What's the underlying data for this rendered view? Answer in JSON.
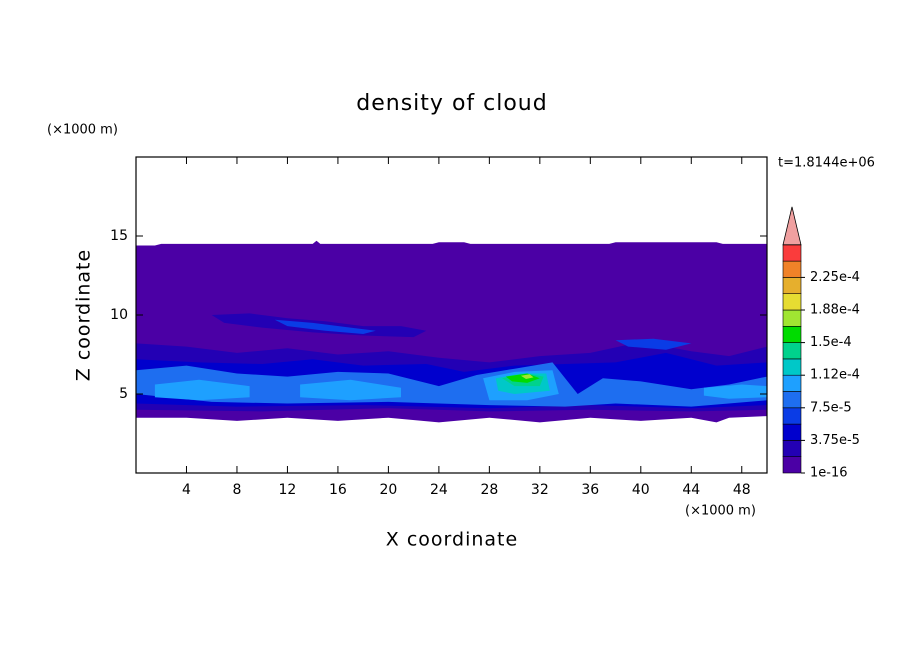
{
  "chart_data": {
    "type": "contour",
    "title": "density of cloud",
    "x_label": "X coordinate",
    "y_label": "Z coordinate",
    "x_unit": "(×1000 m)",
    "y_unit": "(×1000 m)",
    "time_label": "t=1.8144e+06",
    "xlim": [
      0,
      50
    ],
    "ylim": [
      0,
      20
    ],
    "xticks": [
      4,
      8,
      12,
      16,
      20,
      24,
      28,
      32,
      36,
      40,
      44,
      48
    ],
    "yticks": [
      5,
      10,
      15
    ],
    "colorbar_colors": [
      "#4b00a5",
      "#2300b4",
      "#0000cd",
      "#0a3ce6",
      "#1e6ef0",
      "#1ea0ff",
      "#00c8c8",
      "#00d28c",
      "#00dc00",
      "#a0e632",
      "#e6dc32",
      "#e6af2d",
      "#f08228",
      "#fa3c3c"
    ],
    "colorbar_over_color": "#f0a0a0",
    "colorbar_ticks": [
      {
        "value": 1e-16,
        "label": "1e-16"
      },
      {
        "value": 3.75e-05,
        "label": "3.75e-5"
      },
      {
        "value": 7.5e-05,
        "label": "7.5e-5"
      },
      {
        "value": 0.000112,
        "label": "1.12e-4"
      },
      {
        "value": 0.00015,
        "label": "1.5e-4"
      },
      {
        "value": 0.000188,
        "label": "1.88e-4"
      },
      {
        "value": 0.000225,
        "label": "2.25e-4"
      }
    ]
  }
}
